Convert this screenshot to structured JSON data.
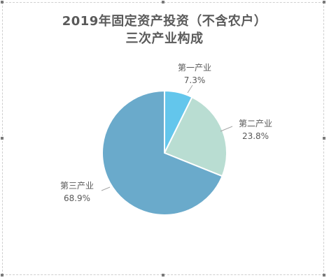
{
  "chart_data": {
    "type": "pie",
    "title": "2019年固定资产投资（不含农户）",
    "subtitle": "三次产业构成",
    "categories": [
      "第一产业",
      "第二产业",
      "第三产业"
    ],
    "values": [
      7.3,
      23.8,
      68.9
    ],
    "value_labels": [
      "7.3%",
      "23.8%",
      "68.9%"
    ],
    "colors": [
      "#63c6ec",
      "#b9ddd2",
      "#6aaacb"
    ],
    "legend": "none",
    "start_angle": "12 o'clock",
    "direction": "clockwise"
  }
}
